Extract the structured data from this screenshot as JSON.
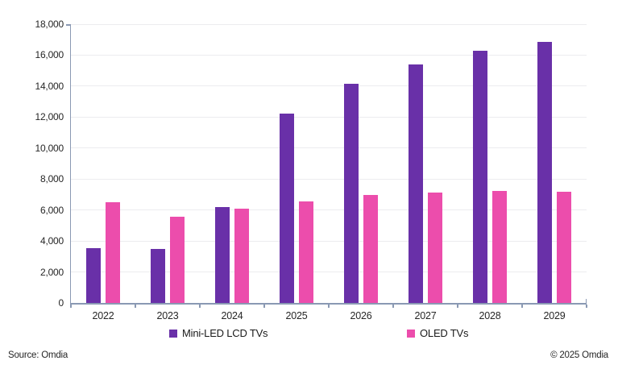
{
  "chart_data": {
    "type": "bar",
    "title": "",
    "xlabel": "",
    "ylabel": "",
    "categories": [
      "2022",
      "2023",
      "2024",
      "2025",
      "2026",
      "2027",
      "2028",
      "2029"
    ],
    "series": [
      {
        "name": "Mini-LED LCD TVs",
        "color": "#6930A8",
        "values": [
          3550,
          3500,
          6200,
          12250,
          14150,
          15400,
          16300,
          16850
        ]
      },
      {
        "name": "OLED TVs",
        "color": "#EC4DAC",
        "values": [
          6500,
          5550,
          6080,
          6550,
          6980,
          7150,
          7250,
          7200
        ]
      }
    ],
    "ylim": [
      0,
      18000
    ],
    "ytick_step": 2000,
    "ytick_labels": [
      "0",
      "2,000",
      "4,000",
      "6,000",
      "8,000",
      "10,000",
      "12,000",
      "14,000",
      "16,000",
      "18,000"
    ],
    "grid": true,
    "legend_position": "bottom"
  },
  "footer": {
    "source": "Source: Omdia",
    "copyright": "© 2025 Omdia"
  },
  "colors": {
    "axis": "#8A99B3",
    "grid": "#ECECEF",
    "text": "#262626"
  }
}
